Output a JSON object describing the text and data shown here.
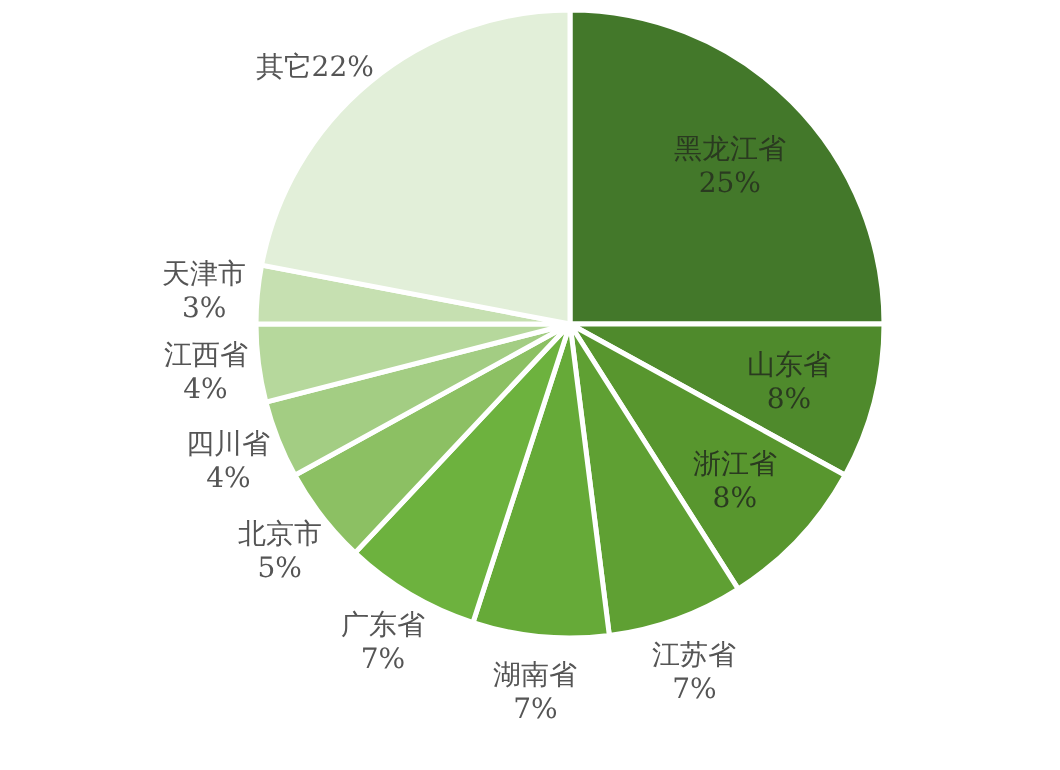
{
  "chart_data": {
    "type": "pie",
    "categories": [
      "黑龙江省",
      "山东省",
      "浙江省",
      "江苏省",
      "湖南省",
      "广东省",
      "北京市",
      "四川省",
      "江西省",
      "天津市",
      "其它"
    ],
    "values": [
      25,
      8,
      8,
      7,
      7,
      7,
      5,
      4,
      4,
      3,
      22
    ],
    "colors": [
      "#43782a",
      "#4f8a2c",
      "#58962e",
      "#5fa033",
      "#66aa38",
      "#6db23e",
      "#8cc063",
      "#a3cd83",
      "#b6d89c",
      "#c6e0b1",
      "#e2efd9"
    ],
    "value_labels": [
      "25%",
      "8%",
      "8%",
      "7%",
      "7%",
      "7%",
      "5%",
      "4%",
      "4%",
      "3%",
      "22%"
    ]
  }
}
